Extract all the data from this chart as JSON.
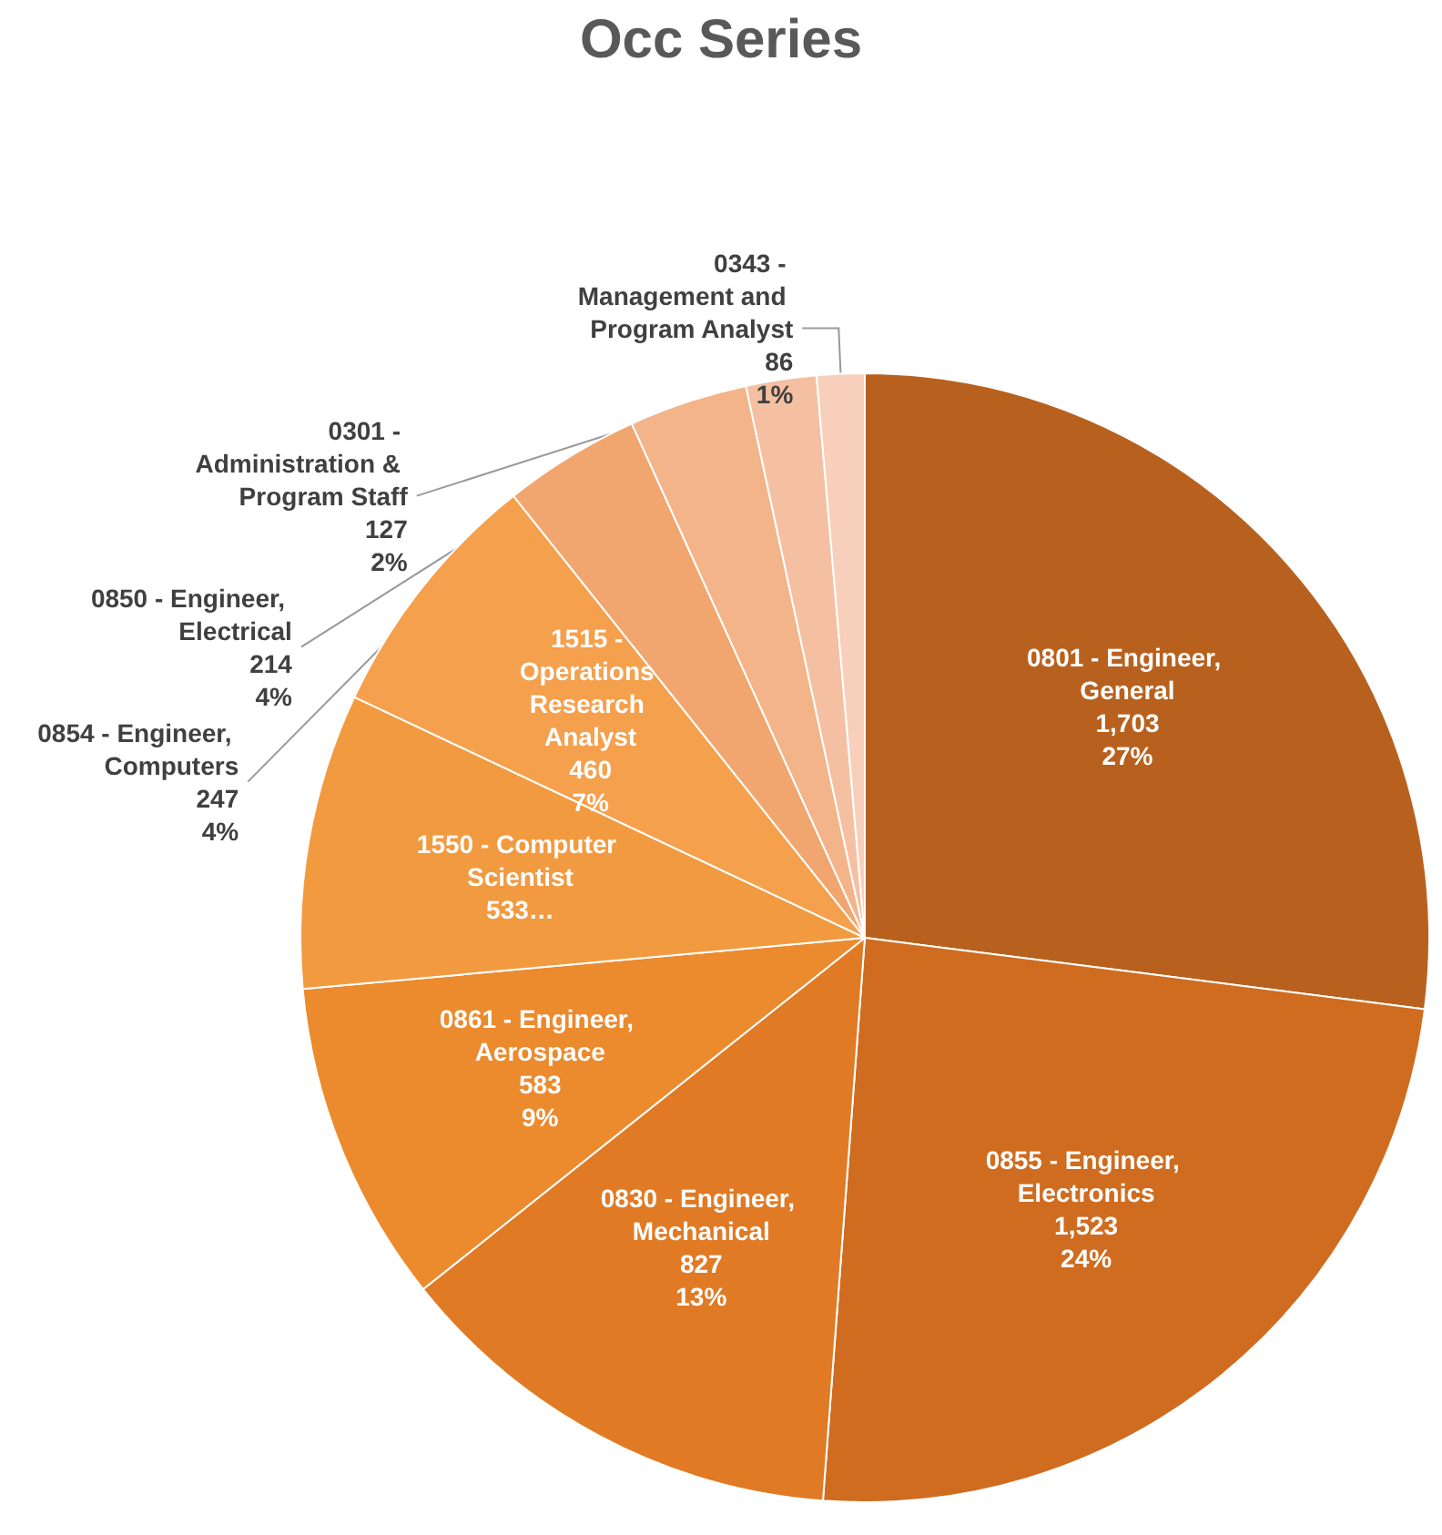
{
  "chart_data": {
    "type": "pie",
    "title": "Occ Series",
    "categories": [
      "0801 - Engineer, General",
      "0855 - Engineer, Electronics",
      "0830 - Engineer, Mechanical",
      "0861 - Engineer, Aerospace",
      "1550 - Computer Scientist",
      "1515 - Operations Research Analyst",
      "0854 - Engineer, Computers",
      "0850 - Engineer, Electrical",
      "0301 - Administration & Program Staff",
      "0343 - Management and Program Analyst"
    ],
    "values": [
      1703,
      1523,
      827,
      583,
      533,
      460,
      247,
      214,
      127,
      86
    ],
    "value_labels": [
      "1,703\n27%",
      "1,523\n24%",
      "827\n13%",
      "583\n9%",
      "533…",
      "460\n7%",
      "247\n4%",
      "214\n4%",
      "127\n2%",
      "86\n1%"
    ],
    "colors": [
      "#b8611e",
      "#cf6c20",
      "#e07a25",
      "#ec8a2e",
      "#f29a40",
      "#f5a04d",
      "#f0a66e",
      "#f3b48a",
      "#f5c0a2",
      "#f8cfba"
    ],
    "legend": false
  }
}
